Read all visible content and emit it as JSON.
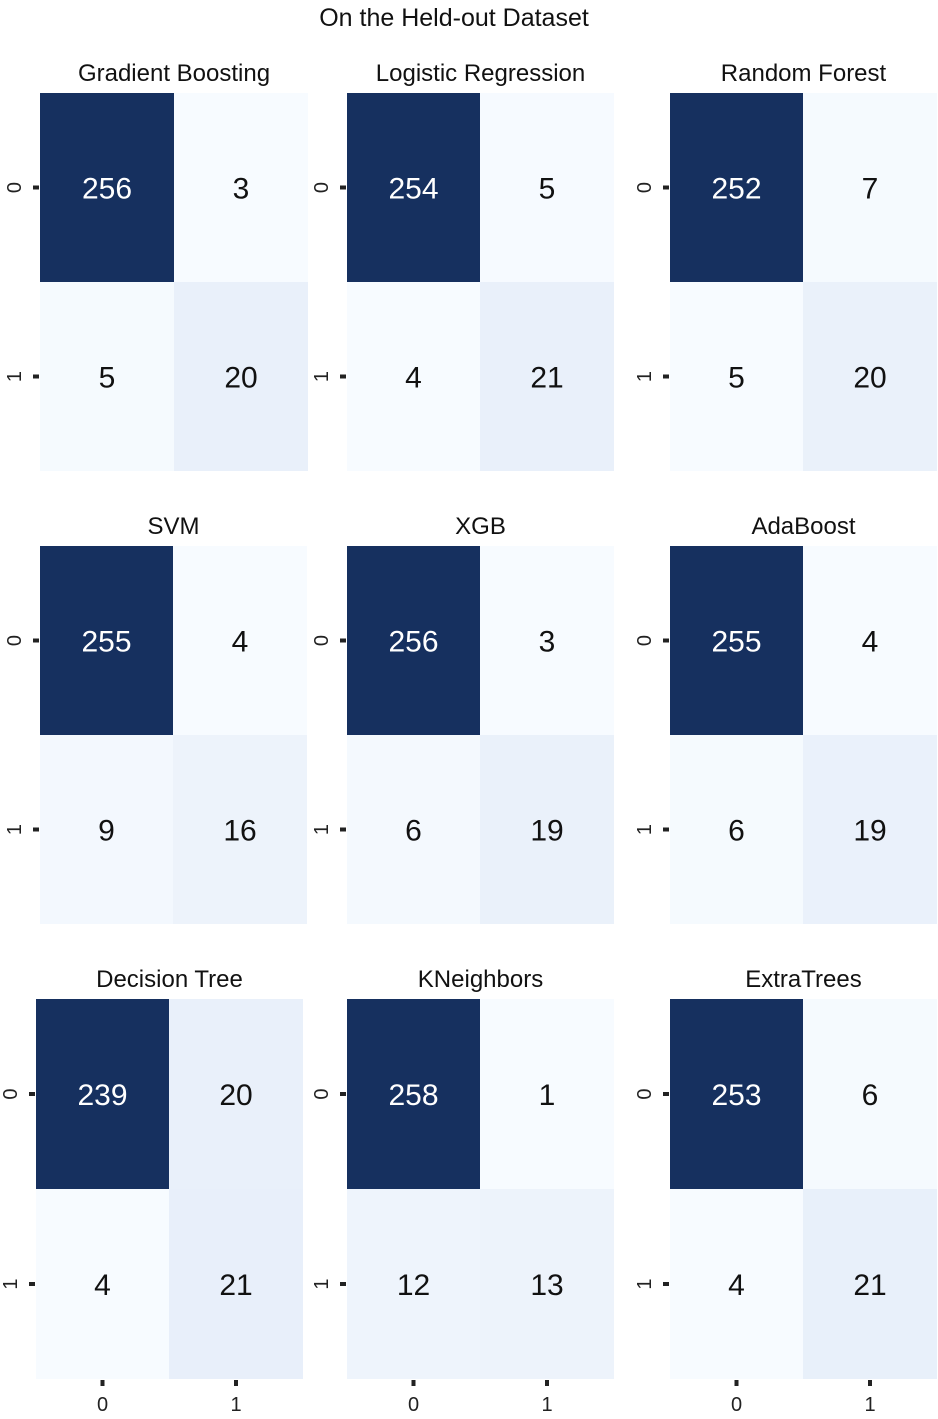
{
  "figure": {
    "title": "On the Held-out Dataset"
  },
  "chart_data": [
    {
      "type": "heatmap",
      "title": "Gradient Boosting",
      "rows": [
        "0",
        "1"
      ],
      "cols": [
        "0",
        "1"
      ],
      "values": [
        [
          256,
          3
        ],
        [
          5,
          20
        ]
      ]
    },
    {
      "type": "heatmap",
      "title": "Logistic Regression",
      "rows": [
        "0",
        "1"
      ],
      "cols": [
        "0",
        "1"
      ],
      "values": [
        [
          254,
          5
        ],
        [
          4,
          21
        ]
      ]
    },
    {
      "type": "heatmap",
      "title": "Random Forest",
      "rows": [
        "0",
        "1"
      ],
      "cols": [
        "0",
        "1"
      ],
      "values": [
        [
          252,
          7
        ],
        [
          5,
          20
        ]
      ]
    },
    {
      "type": "heatmap",
      "title": "SVM",
      "rows": [
        "0",
        "1"
      ],
      "cols": [
        "0",
        "1"
      ],
      "values": [
        [
          255,
          4
        ],
        [
          9,
          16
        ]
      ]
    },
    {
      "type": "heatmap",
      "title": "XGB",
      "rows": [
        "0",
        "1"
      ],
      "cols": [
        "0",
        "1"
      ],
      "values": [
        [
          256,
          3
        ],
        [
          6,
          19
        ]
      ]
    },
    {
      "type": "heatmap",
      "title": "AdaBoost",
      "rows": [
        "0",
        "1"
      ],
      "cols": [
        "0",
        "1"
      ],
      "values": [
        [
          255,
          4
        ],
        [
          6,
          19
        ]
      ]
    },
    {
      "type": "heatmap",
      "title": "Decision Tree",
      "rows": [
        "0",
        "1"
      ],
      "cols": [
        "0",
        "1"
      ],
      "values": [
        [
          239,
          20
        ],
        [
          4,
          21
        ]
      ]
    },
    {
      "type": "heatmap",
      "title": "KNeighbors",
      "rows": [
        "0",
        "1"
      ],
      "cols": [
        "0",
        "1"
      ],
      "values": [
        [
          258,
          1
        ],
        [
          12,
          13
        ]
      ]
    },
    {
      "type": "heatmap",
      "title": "ExtraTrees",
      "rows": [
        "0",
        "1"
      ],
      "cols": [
        "0",
        "1"
      ],
      "values": [
        [
          253,
          6
        ],
        [
          4,
          21
        ]
      ]
    }
  ],
  "colors": {
    "high": "#16305f",
    "low": "#f7fbff",
    "text_dark": "#111111",
    "text_light": "#ffffff"
  }
}
